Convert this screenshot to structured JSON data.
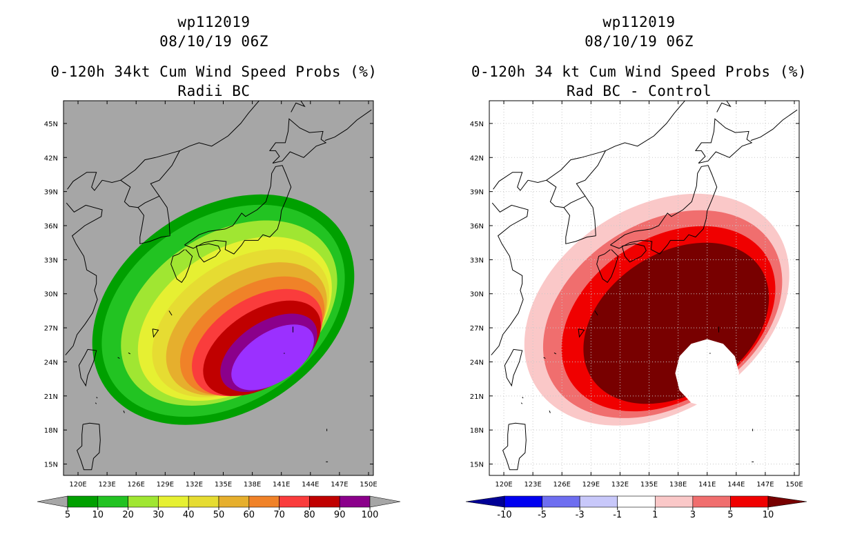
{
  "chart_data": [
    {
      "type": "heatmap",
      "storm_id": "wp112019",
      "datetime": "08/10/19 06Z",
      "title": "0-120h 34kt Cum Wind Speed Probs (%)",
      "subtitle": "Radii BC",
      "x_ticks": [
        "120E",
        "123E",
        "126E",
        "129E",
        "132E",
        "135E",
        "138E",
        "141E",
        "144E",
        "147E",
        "150E"
      ],
      "y_ticks": [
        "45N",
        "42N",
        "39N",
        "36N",
        "33N",
        "30N",
        "27N",
        "24N",
        "21N",
        "18N",
        "15N"
      ],
      "lon_range": [
        118.5,
        150.5
      ],
      "lat_range": [
        14,
        47
      ],
      "background_color": "#a6a6a6",
      "colorbar": {
        "labels": [
          "5",
          "10",
          "20",
          "30",
          "40",
          "50",
          "60",
          "70",
          "80",
          "90",
          "100"
        ],
        "colors": [
          "#00a000",
          "#22c322",
          "#a0e632",
          "#e6f032",
          "#e6dc32",
          "#e6af2d",
          "#f08228",
          "#fa3c3c",
          "#c00000",
          "#8b008b",
          "#9b30ff"
        ]
      },
      "contour_levels": [
        5,
        10,
        20,
        30,
        40,
        50,
        60,
        70,
        80,
        90
      ]
    },
    {
      "type": "heatmap",
      "storm_id": "wp112019",
      "datetime": "08/10/19 06Z",
      "title": "0-120h 34 kt Cum Wind Speed Probs (%)",
      "subtitle": "Rad BC - Control",
      "x_ticks": [
        "120E",
        "123E",
        "126E",
        "129E",
        "132E",
        "135E",
        "138E",
        "141E",
        "144E",
        "147E",
        "150E"
      ],
      "y_ticks": [
        "45N",
        "42N",
        "39N",
        "36N",
        "33N",
        "30N",
        "27N",
        "24N",
        "21N",
        "18N",
        "15N"
      ],
      "lon_range": [
        118.5,
        150.5
      ],
      "lat_range": [
        14,
        47
      ],
      "background_color": "#ffffff",
      "colorbar": {
        "labels": [
          "-10",
          "-5",
          "-3",
          "-1",
          "1",
          "3",
          "5",
          "10"
        ],
        "colors": [
          "#000096",
          "#0000f0",
          "#6e6ef0",
          "#c8c8fa",
          "#ffffff",
          "#fac8c8",
          "#f06e6e",
          "#f00000",
          "#780000"
        ]
      },
      "contour_levels": [
        1,
        3,
        5,
        10
      ]
    }
  ]
}
